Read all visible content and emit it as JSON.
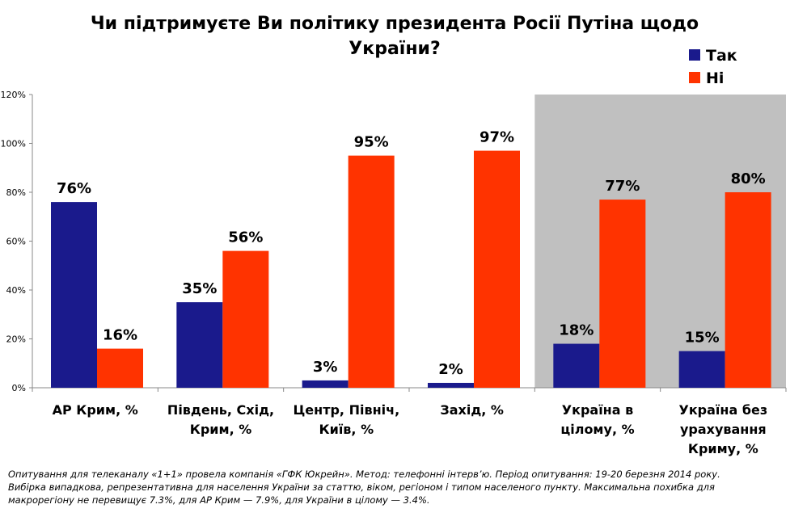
{
  "chart_data": {
    "type": "bar",
    "title": [
      "Чи підтримуєте Ви політику президента Росії Путіна щодо",
      "України?"
    ],
    "categories": [
      [
        "АР Крим, %"
      ],
      [
        "Південь, Схід,",
        "Крим, %"
      ],
      [
        "Центр, Північ,",
        "Київ, %"
      ],
      [
        "Захід, %"
      ],
      [
        "Україна в",
        "цілому, %"
      ],
      [
        "Україна без",
        "урахування",
        "Криму, %"
      ]
    ],
    "series": [
      {
        "name": "Так",
        "color": "#1a1a8c",
        "values": [
          76,
          35,
          3,
          2,
          18,
          15
        ],
        "labels": [
          "76%",
          "35%",
          "3%",
          "2%",
          "18%",
          "15%"
        ]
      },
      {
        "name": "Ні",
        "color": "#ff3300",
        "values": [
          16,
          56,
          95,
          97,
          77,
          80
        ],
        "labels": [
          "16%",
          "56%",
          "95%",
          "97%",
          "77%",
          "80%"
        ]
      }
    ],
    "ylim": [
      0,
      120
    ],
    "yticks": [
      0,
      20,
      40,
      60,
      80,
      100,
      120
    ],
    "ytick_labels": [
      "0%",
      "20%",
      "40%",
      "60%",
      "80%",
      "100%",
      "120%"
    ],
    "highlighted_categories": [
      4,
      5
    ],
    "highlight_color": "#c0c0c0",
    "legend_position": "top-right",
    "grid": false
  },
  "footnote": [
    "Опитування для телеканалу «1+1» провела компанія «ГФК Юкрейн». Метод: телефонні інтерв’ю. Період опитування: 19-20 березня 2014  року.",
    "Вибірка випадкова, репрезентативна для населення України за статтю, віком, регіоном і типом населеного пункту. Максимальна похибка для",
    "макрорегіону не перевищує 7.3%, для АР Крим — 7.9%, для України в цілому — 3.4%."
  ]
}
